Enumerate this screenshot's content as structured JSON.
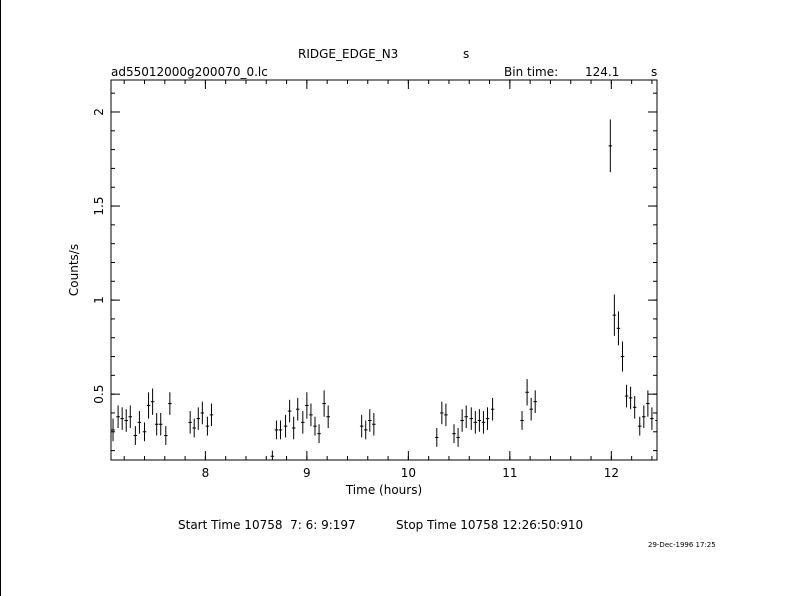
{
  "header": {
    "object_name": "RIDGE_EDGE_N3",
    "object_suffix": "s",
    "file_name": "ad55012000g200070_0.lc",
    "bin_time_label": "Bin time:",
    "bin_time_value": "124.1",
    "bin_time_unit": "s"
  },
  "footer": {
    "start_time": "Start Time 10758  7: 6: 9:197",
    "stop_time": "Stop Time 10758 12:26:50:910",
    "stamp": "29-Dec-1996 17:25"
  },
  "chart_data": {
    "type": "scatter",
    "xlabel": "Time (hours)",
    "ylabel": "Counts/s",
    "xlim": [
      7.07,
      12.45
    ],
    "ylim": [
      0.15,
      2.17
    ],
    "x_ticks": [
      8,
      9,
      10,
      11,
      12
    ],
    "y_ticks": [
      0.5,
      1,
      1.5,
      2
    ],
    "y_tick_labels": [
      "0.5",
      "1",
      "1.5",
      "2"
    ],
    "x_tick_labels": [
      "8",
      "9",
      "10",
      "11",
      "12"
    ],
    "x_error": 0.0172,
    "series": [
      {
        "x": [
          7.09,
          7.14,
          7.18,
          7.22,
          7.26,
          7.31,
          7.35,
          7.4,
          7.44,
          7.48,
          7.52,
          7.56,
          7.61,
          7.65,
          7.85,
          7.89,
          7.93,
          7.97,
          8.02,
          8.06,
          8.66,
          8.7,
          8.74,
          8.79,
          8.83,
          8.87,
          8.91,
          8.96,
          9.0,
          9.04,
          9.08,
          9.12,
          9.17,
          9.21,
          9.54,
          9.58,
          9.62,
          9.66,
          10.28,
          10.33,
          10.37,
          10.45,
          10.49,
          10.53,
          10.57,
          10.62,
          10.66,
          10.7,
          10.74,
          10.78,
          10.83,
          11.12,
          11.17,
          11.21,
          11.25,
          11.99,
          12.03,
          12.07,
          12.11,
          12.15,
          12.19,
          12.23,
          12.28,
          12.32,
          12.36,
          12.4,
          12.45
        ],
        "y": [
          0.31,
          0.38,
          0.37,
          0.36,
          0.38,
          0.28,
          0.35,
          0.3,
          0.44,
          0.46,
          0.34,
          0.34,
          0.28,
          0.45,
          0.35,
          0.32,
          0.37,
          0.4,
          0.33,
          0.39,
          0.17,
          0.31,
          0.31,
          0.33,
          0.41,
          0.32,
          0.42,
          0.35,
          0.44,
          0.39,
          0.33,
          0.29,
          0.45,
          0.38,
          0.33,
          0.31,
          0.36,
          0.34,
          0.27,
          0.4,
          0.39,
          0.29,
          0.27,
          0.36,
          0.38,
          0.37,
          0.35,
          0.36,
          0.35,
          0.37,
          0.42,
          0.36,
          0.51,
          0.42,
          0.46,
          1.82,
          0.92,
          0.85,
          0.7,
          0.49,
          0.48,
          0.43,
          0.33,
          0.38,
          0.45,
          0.37,
          0.36
        ],
        "yerr": [
          0.06,
          0.06,
          0.06,
          0.06,
          0.06,
          0.05,
          0.06,
          0.05,
          0.07,
          0.07,
          0.06,
          0.06,
          0.05,
          0.06,
          0.06,
          0.05,
          0.06,
          0.06,
          0.05,
          0.06,
          0.03,
          0.05,
          0.05,
          0.06,
          0.06,
          0.06,
          0.06,
          0.06,
          0.07,
          0.06,
          0.05,
          0.05,
          0.07,
          0.06,
          0.06,
          0.05,
          0.06,
          0.06,
          0.05,
          0.06,
          0.06,
          0.05,
          0.05,
          0.06,
          0.06,
          0.06,
          0.06,
          0.06,
          0.06,
          0.06,
          0.06,
          0.05,
          0.07,
          0.06,
          0.06,
          0.14,
          0.11,
          0.09,
          0.08,
          0.06,
          0.06,
          0.06,
          0.05,
          0.06,
          0.07,
          0.06,
          0.06
        ]
      }
    ]
  }
}
